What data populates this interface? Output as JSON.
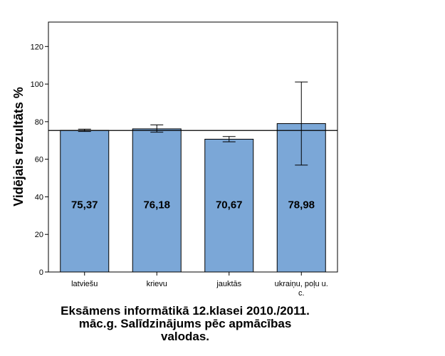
{
  "chart_data": {
    "type": "bar",
    "categories": [
      "latviešu",
      "krievu",
      "jauktās",
      "ukraiņu, poļu u. c."
    ],
    "values": [
      75.37,
      76.18,
      70.67,
      78.98
    ],
    "data_labels": [
      "75,37",
      "76,18",
      "70,67",
      "78,98"
    ],
    "error_bars": [
      {
        "low": 74.8,
        "high": 76.0
      },
      {
        "low": 74.4,
        "high": 78.3
      },
      {
        "low": 69.3,
        "high": 72.1
      },
      {
        "low": 56.9,
        "high": 101.1
      }
    ],
    "reference_line": 75.3,
    "ylabel": "Vidējais rezultāts %",
    "ylim": [
      0,
      133
    ],
    "yticks": [
      0,
      20,
      40,
      60,
      80,
      100,
      120
    ],
    "grid": false,
    "bar_color": "#7ba7d7",
    "title": "Eksāmens informātikā 12.klasei 2010./2011. māc.g. Salīdzinājums pēc apmācības valodas.",
    "title_lines": [
      "Eksāmens informātikā 12.klasei 2010./2011.",
      "māc.g. Salīdzinājums pēc apmācības",
      "valodas."
    ]
  }
}
